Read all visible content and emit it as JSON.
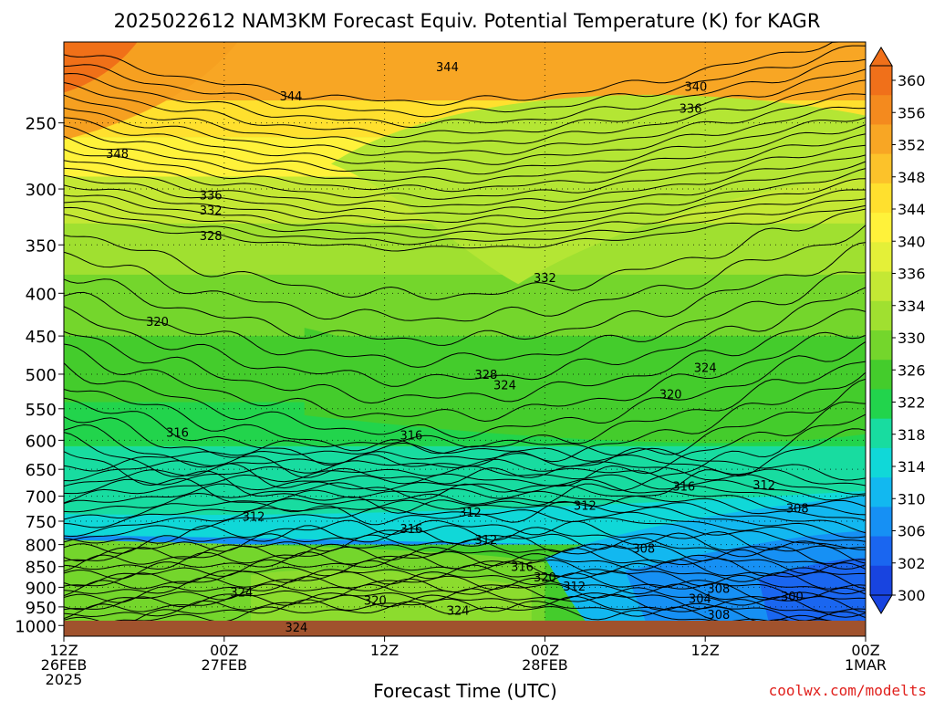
{
  "chart_data": {
    "type": "heatmap",
    "title": "2025022612 NAM3KM Forecast Equiv. Potential Temperature (K) for KAGR",
    "xlabel": "Forecast Time (UTC)",
    "ylabel": "",
    "credit": "coolwx.com/modelts",
    "x_ticks": [
      {
        "hour": 0,
        "lines": [
          "12Z",
          "26FEB",
          "2025"
        ]
      },
      {
        "hour": 12,
        "lines": [
          "00Z",
          "27FEB"
        ]
      },
      {
        "hour": 24,
        "lines": [
          "12Z"
        ]
      },
      {
        "hour": 36,
        "lines": [
          "00Z",
          "28FEB"
        ]
      },
      {
        "hour": 48,
        "lines": [
          "12Z"
        ]
      },
      {
        "hour": 60,
        "lines": [
          "00Z",
          "1MAR"
        ]
      }
    ],
    "x_range_hours": [
      0,
      60
    ],
    "y_ticks": [
      250,
      300,
      350,
      400,
      450,
      500,
      550,
      600,
      650,
      700,
      750,
      800,
      850,
      900,
      950,
      1000
    ],
    "y_range_hpa": [
      200,
      1030
    ],
    "y_scale": "log-pressure",
    "colorbar": {
      "labels": [
        360,
        356,
        352,
        348,
        344,
        340,
        336,
        334,
        330,
        326,
        322,
        318,
        314,
        310,
        306,
        302,
        300
      ],
      "colors": [
        "#f0701a",
        "#f48a1e",
        "#f8a624",
        "#fcc22a",
        "#ffe02e",
        "#fff23a",
        "#e4f038",
        "#c4e834",
        "#a0e030",
        "#74d62c",
        "#44cc2c",
        "#22d44c",
        "#18dca0",
        "#10d8d8",
        "#12b8f0",
        "#1690f4",
        "#1a66f0",
        "#1844e0"
      ],
      "range": [
        300,
        360
      ]
    },
    "contour_labels": [
      {
        "v": "344",
        "h": 28.7,
        "p": 214
      },
      {
        "v": "340",
        "h": 47.3,
        "p": 226
      },
      {
        "v": "344",
        "h": 17.0,
        "p": 232
      },
      {
        "v": "336",
        "h": 46.9,
        "p": 240
      },
      {
        "v": "348",
        "h": 4.0,
        "p": 272
      },
      {
        "v": "336",
        "h": 11.0,
        "p": 305
      },
      {
        "v": "332",
        "h": 11.0,
        "p": 318
      },
      {
        "v": "328",
        "h": 11.0,
        "p": 341
      },
      {
        "v": "332",
        "h": 36.0,
        "p": 383
      },
      {
        "v": "320",
        "h": 7.0,
        "p": 432
      },
      {
        "v": "324",
        "h": 48.0,
        "p": 491
      },
      {
        "v": "328",
        "h": 31.6,
        "p": 500
      },
      {
        "v": "324",
        "h": 33.0,
        "p": 515
      },
      {
        "v": "320",
        "h": 45.4,
        "p": 528
      },
      {
        "v": "316",
        "h": 8.5,
        "p": 587
      },
      {
        "v": "316",
        "h": 26.0,
        "p": 591
      },
      {
        "v": "316",
        "h": 46.4,
        "p": 681
      },
      {
        "v": "312",
        "h": 52.4,
        "p": 678
      },
      {
        "v": "312",
        "h": 39.0,
        "p": 718
      },
      {
        "v": "312",
        "h": 30.4,
        "p": 731
      },
      {
        "v": "308",
        "h": 54.9,
        "p": 723
      },
      {
        "v": "312",
        "h": 14.2,
        "p": 740
      },
      {
        "v": "316",
        "h": 26.0,
        "p": 765
      },
      {
        "v": "312",
        "h": 31.6,
        "p": 789
      },
      {
        "v": "308",
        "h": 43.4,
        "p": 808
      },
      {
        "v": "316",
        "h": 34.3,
        "p": 850
      },
      {
        "v": "320",
        "h": 36.0,
        "p": 875
      },
      {
        "v": "312",
        "h": 38.2,
        "p": 897
      },
      {
        "v": "308",
        "h": 49.0,
        "p": 903
      },
      {
        "v": "324",
        "h": 13.3,
        "p": 912
      },
      {
        "v": "300",
        "h": 54.5,
        "p": 922
      },
      {
        "v": "304",
        "h": 47.6,
        "p": 928
      },
      {
        "v": "320",
        "h": 23.3,
        "p": 933
      },
      {
        "v": "324",
        "h": 29.5,
        "p": 959
      },
      {
        "v": "308",
        "h": 49.0,
        "p": 970
      },
      {
        "v": "324",
        "h": 17.4,
        "p": 1005
      }
    ],
    "grid": true
  }
}
